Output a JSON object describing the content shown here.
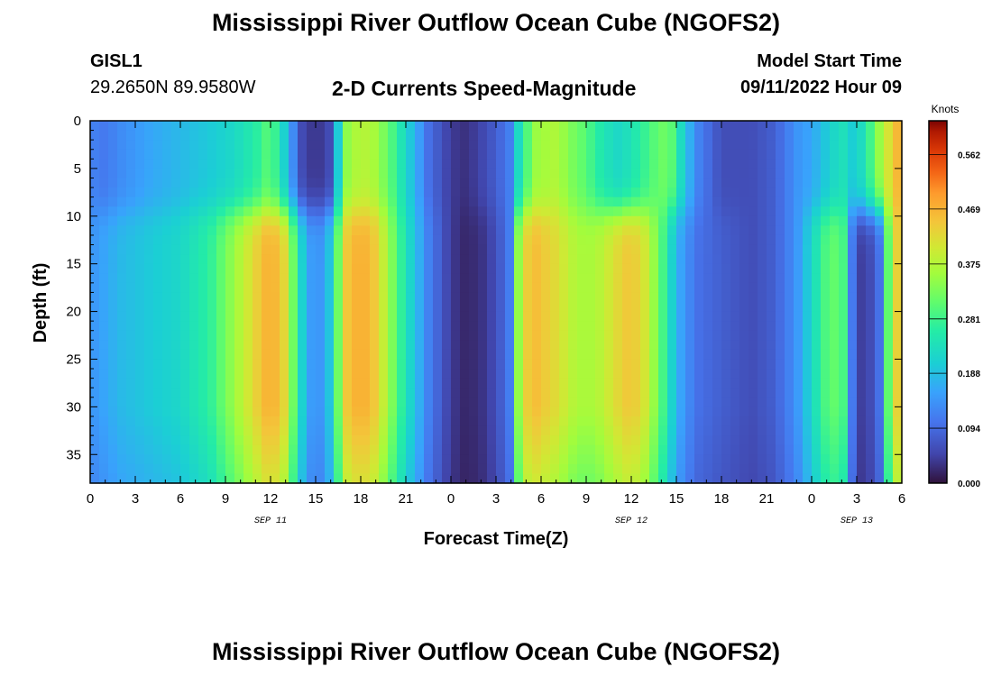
{
  "header": {
    "title": "Mississippi River Outflow Ocean Cube (NGOFS2)",
    "station_id": "GISL1",
    "station_coords": "29.2650N  89.9580W",
    "subtitle": "2-D Currents Speed-Magnitude",
    "model_start_label": "Model Start Time",
    "model_start_value": "09/11/2022 Hour 09"
  },
  "footer": {
    "title": "Mississippi River Outflow Ocean Cube (NGOFS2)"
  },
  "chart_data": {
    "type": "heatmap",
    "xlabel": "Forecast Time(Z)",
    "ylabel": "Depth (ft)",
    "x_tick_labels": [
      "0",
      "3",
      "6",
      "9",
      "12",
      "15",
      "18",
      "21",
      "0",
      "3",
      "6",
      "9",
      "12",
      "15",
      "18",
      "21",
      "0",
      "3",
      "6"
    ],
    "date_labels": [
      "SEP 11",
      "SEP 12",
      "SEP 13"
    ],
    "y_tick_labels": [
      "0",
      "5",
      "10",
      "15",
      "20",
      "25",
      "30",
      "35"
    ],
    "xlim_hours": [
      0,
      54
    ],
    "ylim_ft": [
      0,
      38
    ],
    "colorbar": {
      "label": "Knots",
      "tick_labels": [
        "0.562",
        "0.469",
        "0.375",
        "0.281",
        "0.188",
        "0.094",
        "0.000"
      ],
      "tick_values": [
        0.562,
        0.469,
        0.375,
        0.281,
        0.188,
        0.094,
        0.0
      ],
      "range": [
        0.0,
        0.62
      ],
      "colormap": "turbo"
    },
    "time_profile": {
      "hours": [
        0,
        1,
        2,
        4,
        6,
        8,
        9.5,
        11,
        12,
        13,
        14,
        15,
        16,
        17,
        18,
        19,
        20,
        21,
        22.5,
        24,
        25,
        26,
        27,
        28,
        28.3,
        28.8,
        29.5,
        31,
        32,
        33,
        34,
        35,
        36,
        37,
        38,
        38.8,
        39.5,
        40.5,
        42,
        44,
        45.5,
        47,
        48,
        49,
        50,
        50.8,
        51.5,
        52.5,
        53,
        53.5,
        54
      ],
      "shallow_knots": [
        0.12,
        0.11,
        0.13,
        0.16,
        0.18,
        0.2,
        0.22,
        0.26,
        0.31,
        0.2,
        0.06,
        0.03,
        0.06,
        0.34,
        0.38,
        0.36,
        0.3,
        0.22,
        0.1,
        0.04,
        0.03,
        0.05,
        0.08,
        0.12,
        0.2,
        0.26,
        0.35,
        0.37,
        0.33,
        0.3,
        0.25,
        0.22,
        0.24,
        0.28,
        0.32,
        0.3,
        0.2,
        0.12,
        0.06,
        0.06,
        0.08,
        0.14,
        0.16,
        0.2,
        0.24,
        0.2,
        0.24,
        0.35,
        0.4,
        0.45,
        0.48
      ],
      "deep_knots": [
        0.14,
        0.16,
        0.18,
        0.2,
        0.22,
        0.27,
        0.35,
        0.43,
        0.48,
        0.42,
        0.22,
        0.12,
        0.2,
        0.44,
        0.48,
        0.44,
        0.34,
        0.24,
        0.12,
        0.04,
        0.02,
        0.03,
        0.06,
        0.12,
        0.3,
        0.42,
        0.46,
        0.42,
        0.38,
        0.36,
        0.38,
        0.42,
        0.45,
        0.4,
        0.3,
        0.2,
        0.14,
        0.1,
        0.08,
        0.06,
        0.08,
        0.14,
        0.22,
        0.3,
        0.32,
        0.08,
        0.03,
        0.1,
        0.28,
        0.42,
        0.45
      ]
    }
  }
}
